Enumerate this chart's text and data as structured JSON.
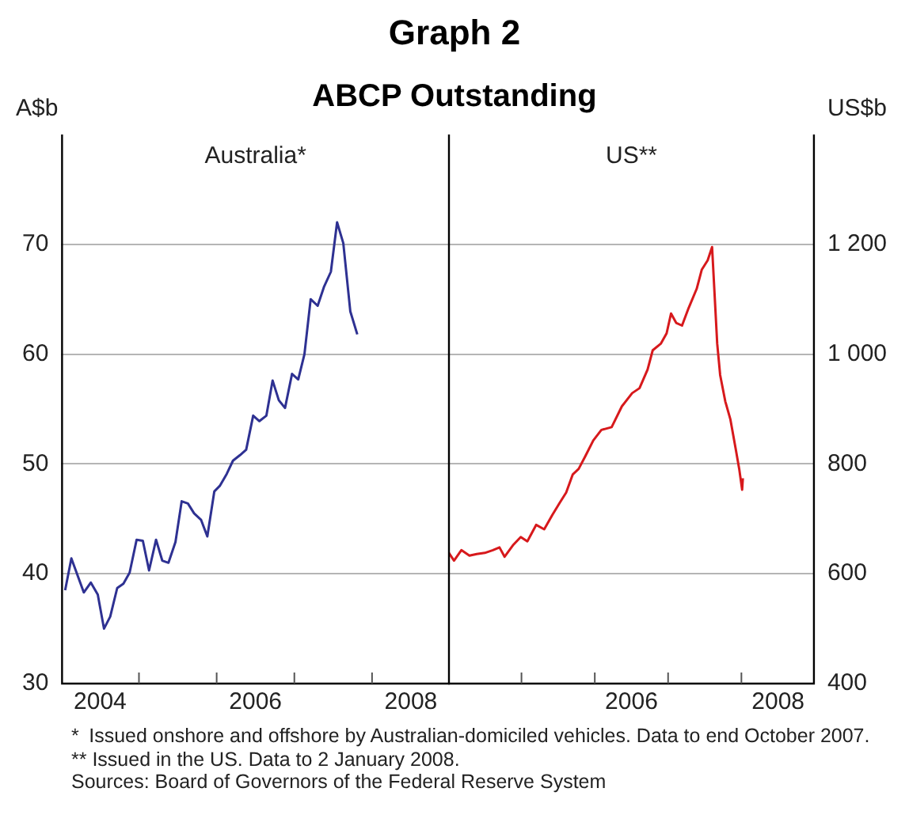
{
  "chart_data": [
    {
      "type": "line",
      "title": "Graph 2",
      "subtitle": "ABCP Outstanding",
      "ylabel": "A$b",
      "grid": "y",
      "marker": "none",
      "annotations": [
        "* Issued onshore and offshore by Australian-domiciled vehicles. Data to end October 2007.",
        "** Issued in the US. Data to 2 January 2008.",
        "Sources: Board of Governors of the Federal Reserve System"
      ],
      "xlim": [
        2004,
        2009
      ],
      "xticks": [
        {
          "value": 2004.5,
          "label": "2004"
        },
        {
          "value": 2005,
          "label": null
        },
        {
          "value": 2006,
          "label": null
        },
        {
          "value": 2006.5,
          "label": "2006"
        },
        {
          "value": 2007,
          "label": null
        },
        {
          "value": 2008,
          "label": null
        },
        {
          "value": 2008.5,
          "label": "2008"
        }
      ],
      "ylim": [
        30,
        80
      ],
      "yticks": [
        30,
        40,
        50,
        60,
        70
      ],
      "series": [
        {
          "name": "Australia*",
          "color": "#2e3192",
          "x": [
            2004.05,
            2004.13,
            2004.29,
            2004.38,
            2004.47,
            2004.55,
            2004.63,
            2004.72,
            2004.8,
            2004.88,
            2004.97,
            2005.05,
            2005.13,
            2005.22,
            2005.3,
            2005.38,
            2005.47,
            2005.55,
            2005.63,
            2005.71,
            2005.8,
            2005.88,
            2005.97,
            2006.04,
            2006.13,
            2006.21,
            2006.3,
            2006.38,
            2006.47,
            2006.55,
            2006.64,
            2006.72,
            2006.8,
            2006.88,
            2006.97,
            2007.05,
            2007.13,
            2007.21,
            2007.3,
            2007.38,
            2007.47,
            2007.55,
            2007.63,
            2007.72,
            2007.81
          ],
          "values": [
            38.5,
            41.4,
            38.3,
            39.2,
            38.1,
            35.0,
            36.1,
            38.7,
            39.1,
            40.1,
            43.1,
            43.0,
            40.3,
            43.1,
            41.2,
            41.0,
            42.9,
            46.6,
            46.4,
            45.5,
            44.9,
            43.4,
            47.5,
            48.0,
            49.1,
            50.3,
            50.8,
            51.3,
            54.4,
            53.9,
            54.4,
            57.6,
            55.8,
            55.1,
            58.2,
            57.7,
            60.0,
            65.0,
            64.4,
            66.1,
            67.5,
            72.0,
            70.1,
            63.9,
            61.8
          ]
        }
      ]
    },
    {
      "type": "line",
      "y2label": "US$b",
      "grid": "y",
      "marker": "none",
      "xlim": [
        2004,
        2009
      ],
      "xticks": [
        {
          "value": 2005,
          "label": null
        },
        {
          "value": 2006,
          "label": null
        },
        {
          "value": 2006.5,
          "label": "2006"
        },
        {
          "value": 2007,
          "label": null
        },
        {
          "value": 2008,
          "label": null
        },
        {
          "value": 2008.5,
          "label": "2008"
        }
      ],
      "y2lim": [
        400,
        1400
      ],
      "y2ticks": [
        400,
        600,
        800,
        {
          "value": 1000,
          "label": "1 000"
        },
        {
          "value": 1200,
          "label": "1 200"
        }
      ],
      "series": [
        {
          "name": "US**",
          "color": "#d7191c",
          "axis": "y2",
          "x": [
            2004.01,
            2004.08,
            2004.18,
            2004.29,
            2004.39,
            2004.5,
            2004.61,
            2004.7,
            2004.77,
            2004.89,
            2004.99,
            2005.08,
            2005.2,
            2005.31,
            2005.42,
            2005.52,
            2005.61,
            2005.7,
            2005.78,
            2005.87,
            2005.98,
            2006.09,
            2006.23,
            2006.37,
            2006.51,
            2006.61,
            2006.72,
            2006.79,
            2006.9,
            2006.98,
            2007.04,
            2007.11,
            2007.19,
            2007.28,
            2007.39,
            2007.46,
            2007.54,
            2007.6,
            2007.67,
            2007.71,
            2007.78,
            2007.85,
            2007.92,
            2007.97,
            2008.01,
            2008.02
          ],
          "values": [
            638,
            624,
            643,
            633,
            636,
            638,
            643,
            648,
            631,
            653,
            667,
            659,
            689,
            681,
            707,
            729,
            748,
            781,
            791,
            814,
            843,
            862,
            867,
            905,
            929,
            938,
            972,
            1007,
            1019,
            1038,
            1074,
            1057,
            1052,
            1084,
            1119,
            1154,
            1171,
            1195,
            1019,
            962,
            914,
            881,
            829,
            791,
            753,
            774
          ]
        }
      ]
    }
  ]
}
